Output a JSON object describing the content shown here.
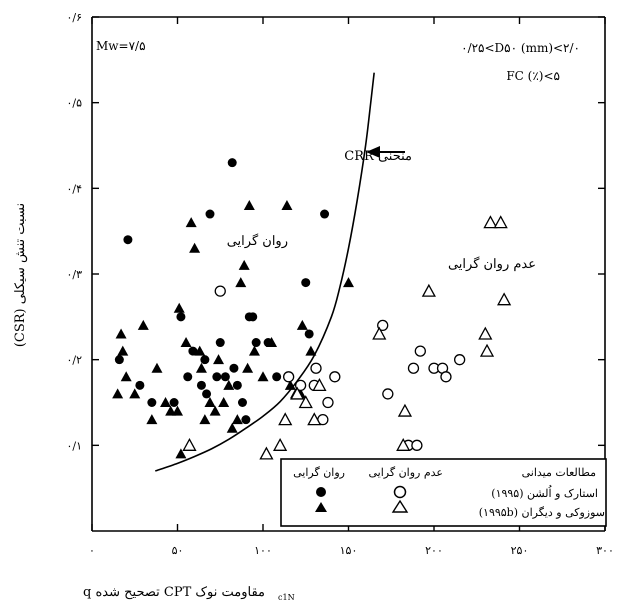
{
  "chart_data": {
    "type": "scatter",
    "title": "",
    "xlabel": "مقاومت نوک CPT تصحیح شده q",
    "xlabel_sub": "c1N",
    "ylabel": "نسبت تنش سیکلی (CSR)",
    "xlim": [
      0,
      300
    ],
    "ylim": [
      0,
      0.6
    ],
    "x_ticks": [
      0,
      50,
      100,
      150,
      200,
      250,
      300
    ],
    "x_tick_labels": [
      "۰",
      "۵۰",
      "۱۰۰",
      "۱۵۰",
      "۲۰۰",
      "۲۵۰",
      "۳۰۰"
    ],
    "y_ticks": [
      0.1,
      0.2,
      0.3,
      0.4,
      0.5,
      0.6
    ],
    "y_tick_labels": [
      "۰/۱",
      "۰/۲",
      "۰/۳",
      "۰/۴",
      "۰/۵",
      "۰/۶"
    ],
    "grid": false,
    "annotations": {
      "magnitude": "Mw=۷/۵",
      "d50_range": "۰/۲۵<D۵۰ (mm)<۲/۰",
      "fines": "FC (٪)<۵",
      "crr_label": "منحنی CRR",
      "liq_region": "روان گرایی",
      "nonliq_region": "عدم روان گرایی"
    },
    "legend": {
      "position": "bottom-right",
      "header_liq": "روان گرایی",
      "header_nonliq": "عدم روان گرایی",
      "header_title": "مطالعات میدانی",
      "row1": "استارک و اُلشن (۱۹۹۵)",
      "row2": "سوزوکی و دیگران (۱۹۹۵b)"
    },
    "crr_curve": [
      [
        37,
        0.07
      ],
      [
        50,
        0.079
      ],
      [
        60,
        0.087
      ],
      [
        70,
        0.096
      ],
      [
        80,
        0.107
      ],
      [
        90,
        0.12
      ],
      [
        100,
        0.134
      ],
      [
        110,
        0.151
      ],
      [
        120,
        0.175
      ],
      [
        130,
        0.205
      ],
      [
        140,
        0.25
      ],
      [
        145,
        0.285
      ],
      [
        150,
        0.33
      ],
      [
        155,
        0.385
      ],
      [
        160,
        0.45
      ],
      [
        163,
        0.5
      ],
      [
        165,
        0.535
      ]
    ],
    "series": [
      {
        "marker": "filled-circle",
        "points": [
          [
            16,
            0.2
          ],
          [
            21,
            0.34
          ],
          [
            28,
            0.17
          ],
          [
            35,
            0.15
          ],
          [
            48,
            0.15
          ],
          [
            52,
            0.25
          ],
          [
            56,
            0.18
          ],
          [
            59,
            0.21
          ],
          [
            64,
            0.17
          ],
          [
            66,
            0.2
          ],
          [
            67,
            0.16
          ],
          [
            69,
            0.37
          ],
          [
            73,
            0.18
          ],
          [
            75,
            0.22
          ],
          [
            78,
            0.18
          ],
          [
            82,
            0.43
          ],
          [
            83,
            0.19
          ],
          [
            85,
            0.17
          ],
          [
            88,
            0.15
          ],
          [
            90,
            0.13
          ],
          [
            92,
            0.25
          ],
          [
            94,
            0.25
          ],
          [
            96,
            0.22
          ],
          [
            103,
            0.22
          ],
          [
            108,
            0.18
          ],
          [
            125,
            0.29
          ],
          [
            127,
            0.23
          ],
          [
            136,
            0.37
          ]
        ]
      },
      {
        "marker": "filled-triangle",
        "points": [
          [
            15,
            0.16
          ],
          [
            17,
            0.23
          ],
          [
            18,
            0.21
          ],
          [
            20,
            0.18
          ],
          [
            25,
            0.16
          ],
          [
            30,
            0.24
          ],
          [
            35,
            0.13
          ],
          [
            38,
            0.19
          ],
          [
            43,
            0.15
          ],
          [
            46,
            0.14
          ],
          [
            50,
            0.14
          ],
          [
            51,
            0.26
          ],
          [
            52,
            0.09
          ],
          [
            55,
            0.22
          ],
          [
            58,
            0.36
          ],
          [
            60,
            0.33
          ],
          [
            63,
            0.21
          ],
          [
            64,
            0.19
          ],
          [
            66,
            0.13
          ],
          [
            69,
            0.15
          ],
          [
            72,
            0.14
          ],
          [
            74,
            0.2
          ],
          [
            77,
            0.15
          ],
          [
            80,
            0.17
          ],
          [
            82,
            0.12
          ],
          [
            85,
            0.13
          ],
          [
            87,
            0.29
          ],
          [
            89,
            0.31
          ],
          [
            91,
            0.19
          ],
          [
            92,
            0.38
          ],
          [
            95,
            0.21
          ],
          [
            100,
            0.18
          ],
          [
            105,
            0.22
          ],
          [
            114,
            0.38
          ],
          [
            116,
            0.17
          ],
          [
            119,
            0.16
          ],
          [
            122,
            0.16
          ],
          [
            123,
            0.24
          ],
          [
            128,
            0.21
          ],
          [
            150,
            0.29
          ]
        ]
      },
      {
        "marker": "open-circle",
        "points": [
          [
            75,
            0.28
          ],
          [
            115,
            0.18
          ],
          [
            122,
            0.17
          ],
          [
            130,
            0.17
          ],
          [
            131,
            0.19
          ],
          [
            135,
            0.13
          ],
          [
            138,
            0.15
          ],
          [
            142,
            0.18
          ],
          [
            170,
            0.24
          ],
          [
            173,
            0.16
          ],
          [
            185,
            0.1
          ],
          [
            188,
            0.19
          ],
          [
            190,
            0.1
          ],
          [
            192,
            0.21
          ],
          [
            200,
            0.19
          ],
          [
            205,
            0.19
          ],
          [
            207,
            0.18
          ],
          [
            215,
            0.2
          ]
        ]
      },
      {
        "marker": "open-triangle",
        "points": [
          [
            57,
            0.1
          ],
          [
            102,
            0.09
          ],
          [
            110,
            0.1
          ],
          [
            113,
            0.13
          ],
          [
            120,
            0.16
          ],
          [
            125,
            0.15
          ],
          [
            130,
            0.13
          ],
          [
            133,
            0.17
          ],
          [
            168,
            0.23
          ],
          [
            182,
            0.1
          ],
          [
            183,
            0.14
          ],
          [
            197,
            0.28
          ],
          [
            230,
            0.23
          ],
          [
            231,
            0.21
          ],
          [
            233,
            0.36
          ],
          [
            239,
            0.36
          ],
          [
            241,
            0.27
          ]
        ]
      }
    ]
  }
}
